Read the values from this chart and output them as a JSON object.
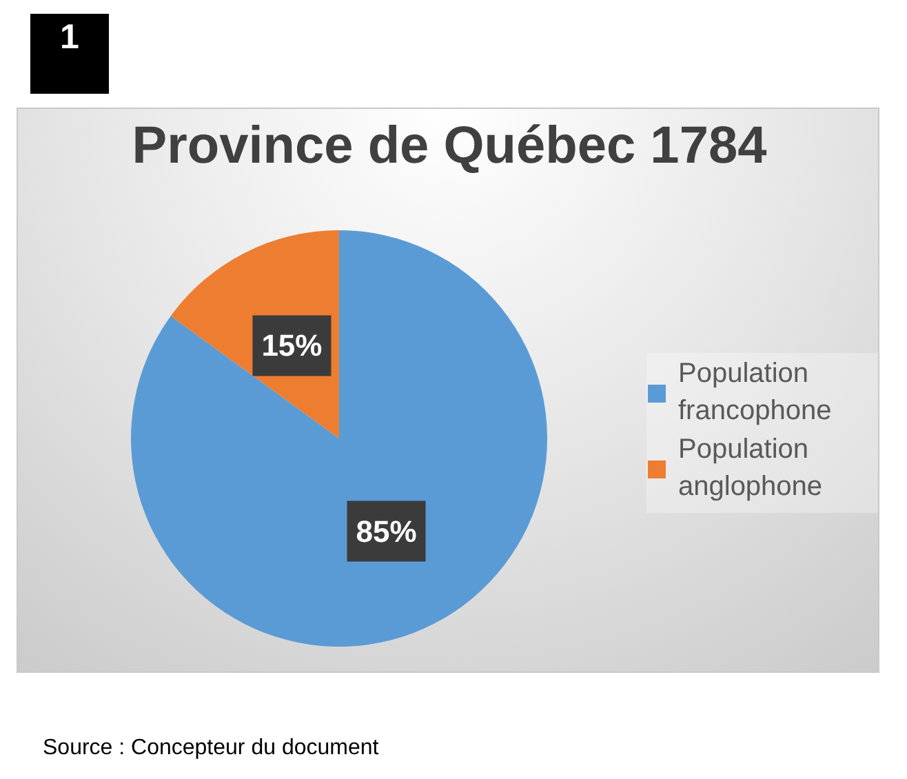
{
  "chart_data": {
    "type": "pie",
    "title": "Province de Québec 1784",
    "categories": [
      "Population francophone",
      "Population anglophone"
    ],
    "values": [
      85,
      15
    ],
    "colors": [
      "#5b9bd5",
      "#ed7d31"
    ],
    "value_labels": [
      "85%",
      "15%"
    ],
    "legend": "right",
    "annotations": [
      "1",
      "Source : Concepteur du document"
    ]
  }
}
